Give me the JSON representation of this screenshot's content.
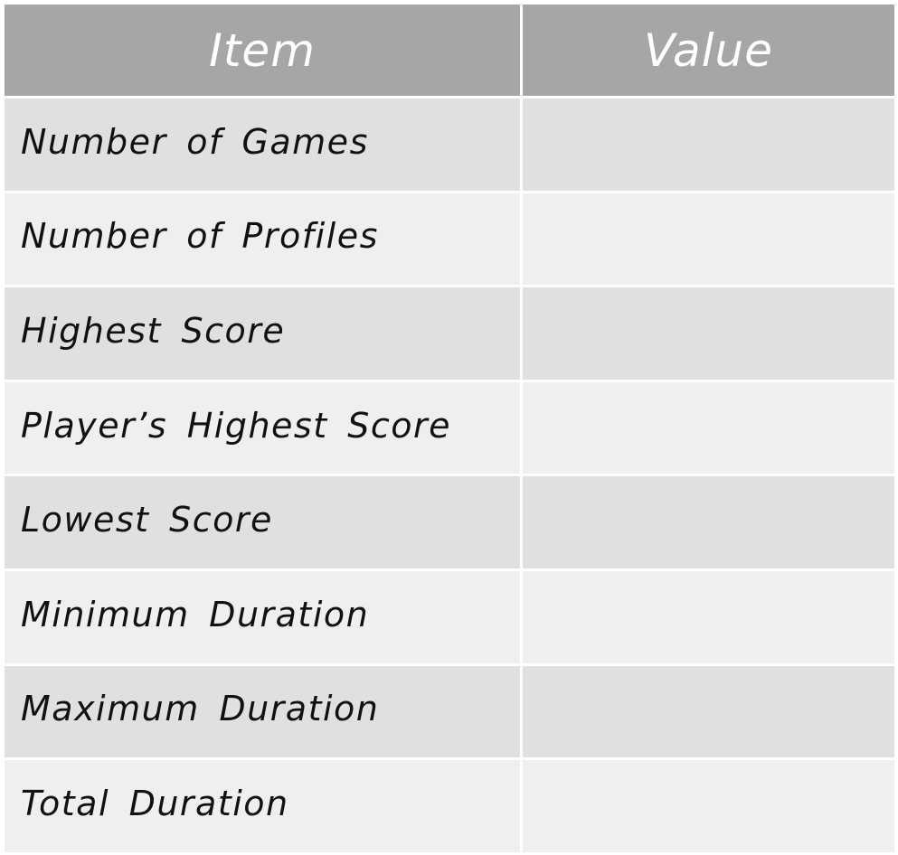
{
  "table": {
    "headers": {
      "item": "Item",
      "value": "Value"
    },
    "rows": [
      {
        "item": "Number of Games",
        "value": ""
      },
      {
        "item": "Number of Profiles",
        "value": ""
      },
      {
        "item": "Highest Score",
        "value": ""
      },
      {
        "item": "Player’s Highest Score",
        "value": ""
      },
      {
        "item": "Lowest Score",
        "value": ""
      },
      {
        "item": "Minimum Duration",
        "value": ""
      },
      {
        "item": "Maximum Duration",
        "value": ""
      },
      {
        "item": "Total Duration",
        "value": ""
      }
    ]
  },
  "colors": {
    "header_background": "#a6a6a6",
    "header_text": "#ffffff",
    "row_odd_background": "#e0e0e0",
    "row_even_background": "#efefef",
    "grid_lines": "#ffffff",
    "body_text": "#111111"
  }
}
